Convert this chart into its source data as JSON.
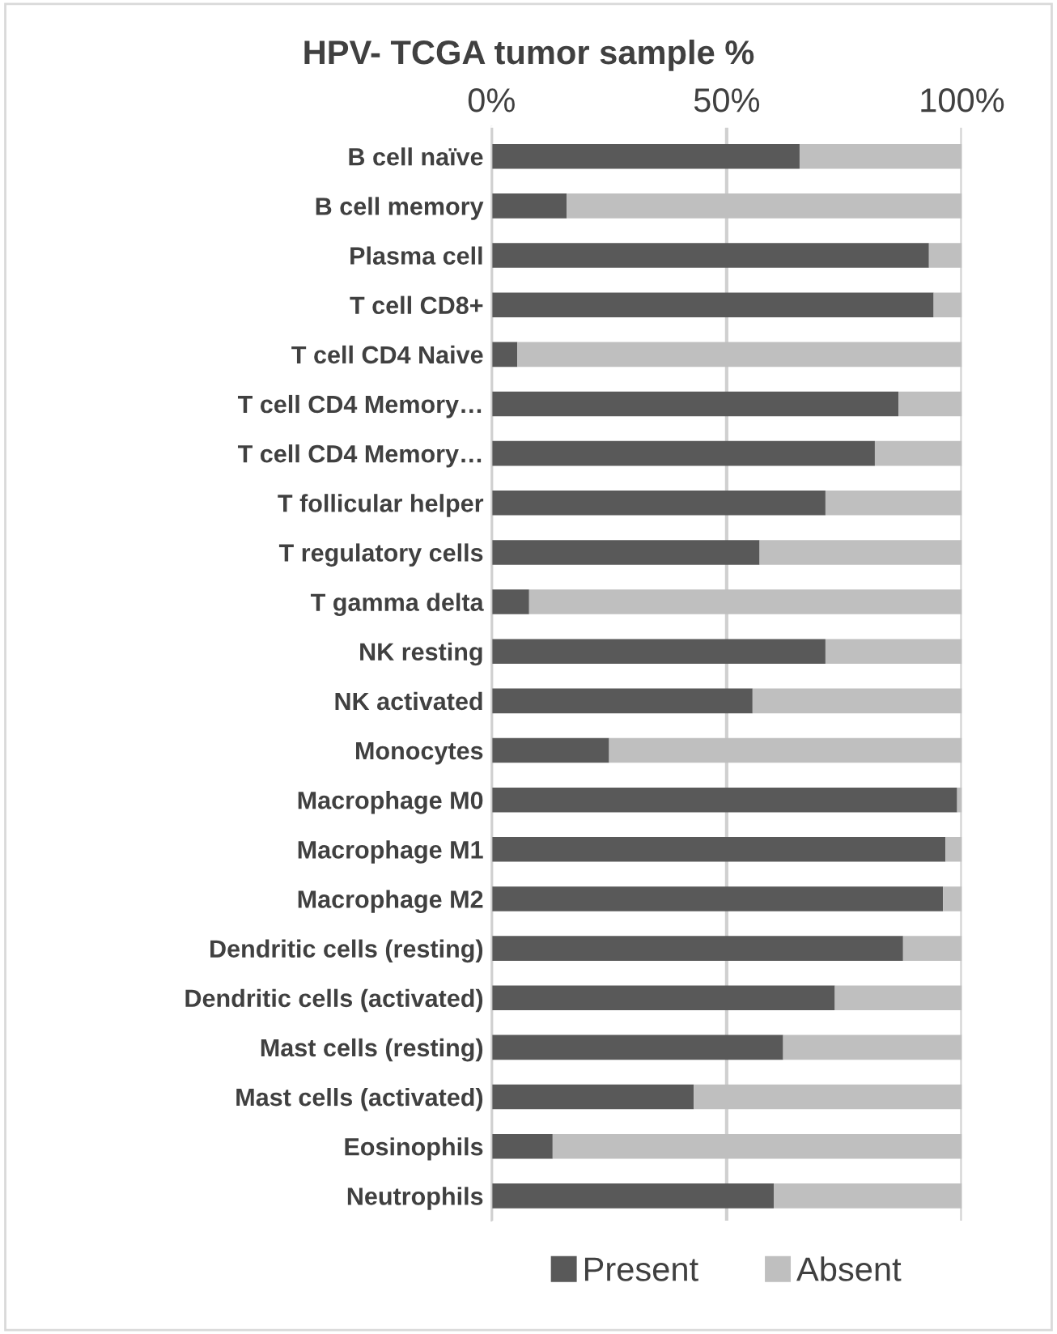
{
  "chart_data": {
    "type": "bar",
    "orientation": "horizontal",
    "stacked": true,
    "title": "HPV- TCGA tumor sample %",
    "categories": [
      "B cell naïve",
      "B cell memory",
      "Plasma cell",
      "T cell CD8+",
      "T cell CD4 Naive",
      "T cell CD4 Memory…",
      "T cell CD4 Memory…",
      "T follicular helper",
      "T regulatory cells",
      "T gamma delta",
      "NK resting",
      "NK activated",
      "Monocytes",
      "Macrophage M0",
      "Macrophage M1",
      "Macrophage M2",
      "Dendritic cells (resting)",
      "Dendritic cells (activated)",
      "Mast cells (resting)",
      "Mast cells (activated)",
      "Eosinophils",
      "Neutrophils"
    ],
    "series": [
      {
        "name": "Present",
        "color": "#595959",
        "values": [
          65.5,
          16,
          93,
          94,
          5.5,
          86.5,
          81.5,
          71,
          57,
          8,
          71,
          55.5,
          25,
          99,
          96.5,
          96,
          87.5,
          73,
          62,
          43,
          13,
          60
        ]
      },
      {
        "name": "Absent",
        "color": "#bfbfbf",
        "values": [
          34.5,
          84,
          7,
          6,
          94.5,
          13.5,
          18.5,
          29,
          43,
          92,
          29,
          44.5,
          75,
          1,
          3.5,
          4,
          12.5,
          27,
          38,
          57,
          87,
          40
        ]
      }
    ],
    "xlim": [
      0,
      100
    ],
    "xticks": [
      {
        "value": 0,
        "label": "0%"
      },
      {
        "value": 50,
        "label": "50%"
      },
      {
        "value": 100,
        "label": "100%"
      }
    ],
    "grid": "x",
    "legend": "bottom"
  }
}
